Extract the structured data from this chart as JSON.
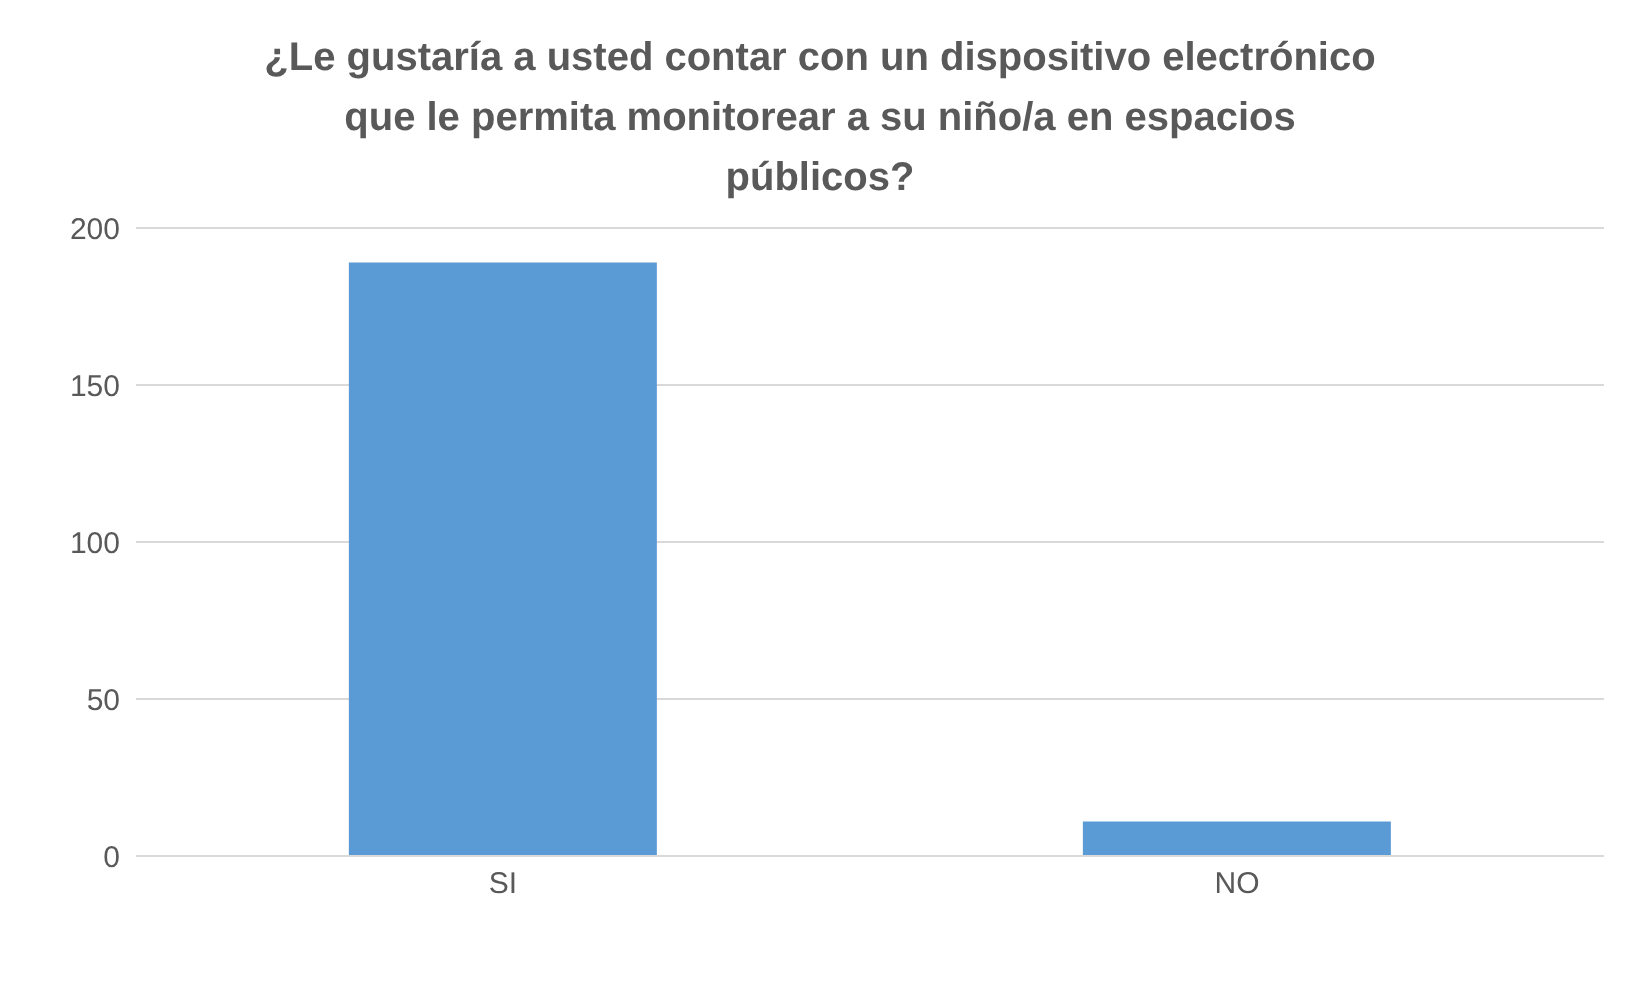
{
  "chart_data": {
    "type": "bar",
    "title": "¿Le gustaría a usted contar con un dispositivo electrónico que le permita monitorear a su niño/a en espacios públicos?",
    "categories": [
      "SI",
      "NO"
    ],
    "values": [
      189,
      11
    ],
    "color": "#5b9bd5",
    "ylim": [
      0,
      200
    ],
    "yticks": [
      0,
      50,
      100,
      150,
      200
    ],
    "grid": "y"
  }
}
